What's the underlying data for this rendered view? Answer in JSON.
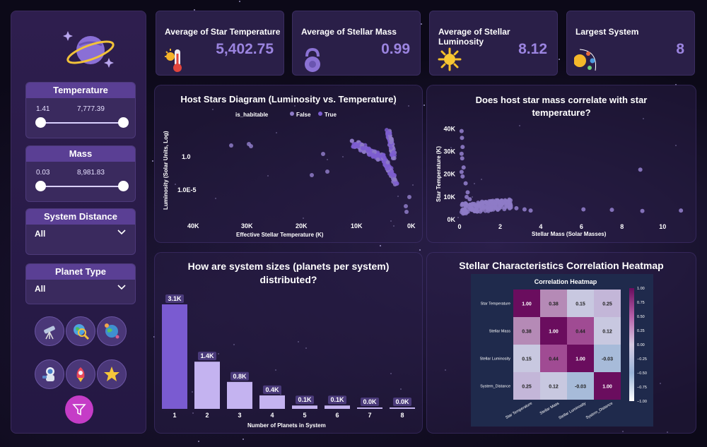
{
  "filters": {
    "temperature": {
      "label": "Temperature",
      "min": "1.41",
      "max": "7,777.39"
    },
    "mass": {
      "label": "Mass",
      "min": "0.03",
      "max": "8,981.83"
    },
    "system_distance": {
      "label": "System Distance",
      "value": "All"
    },
    "planet_type": {
      "label": "Planet Type",
      "value": "All"
    }
  },
  "nav_icons": [
    "telescope-icon",
    "earth-magnifier-icon",
    "planets-icon",
    "astronaut-icon",
    "rocket-icon",
    "star-icon",
    "filter-icon"
  ],
  "kpis": [
    {
      "title": "Average of Star Temperature",
      "value": "5,402.75",
      "icon": "thermometer-sun-icon"
    },
    {
      "title": "Average of Stellar Mass",
      "value": "0.99",
      "icon": "kettlebell-icon"
    },
    {
      "title": "Average of Stellar Luminosity",
      "value": "8.12",
      "icon": "sun-icon"
    },
    {
      "title": "Largest System",
      "value": "8",
      "icon": "solar-system-icon"
    }
  ],
  "colors": {
    "accent": "#9b84e0",
    "false_series": "#8e7bc7",
    "true_series": "#7c5dd0",
    "bar": "#c4b3f0"
  },
  "chart_data": [
    {
      "type": "scatter",
      "title": "Host Stars Diagram (Luminosity vs. Temperature)",
      "legend_title": "is_habitable",
      "series": [
        {
          "name": "False"
        },
        {
          "name": "True"
        }
      ],
      "xlabel": "Effective Stellar Temperature (K)",
      "ylabel": "Luminosity (Solar Units, Log)",
      "x_ticks": [
        "40K",
        "30K",
        "20K",
        "10K",
        "0K"
      ],
      "y_ticks": [
        "1.0",
        "1.0E-5"
      ],
      "x_reversed": true,
      "y_scale": "log",
      "xlim": [
        42000,
        0
      ]
    },
    {
      "type": "scatter",
      "title": "Does host star mass correlate with star temperature?",
      "xlabel": "Stellar Mass (Solar Masses)",
      "ylabel": "Star Temperature (K)",
      "x_ticks": [
        "0",
        "2",
        "4",
        "6",
        "8",
        "10"
      ],
      "y_ticks": [
        "0K",
        "10K",
        "20K",
        "30K",
        "40K"
      ],
      "xlim": [
        0,
        11
      ],
      "ylim": [
        0,
        42000
      ],
      "points": [
        [
          0.1,
          39000
        ],
        [
          0.12,
          36000
        ],
        [
          0.15,
          32000
        ],
        [
          0.1,
          29000
        ],
        [
          0.13,
          27000
        ],
        [
          0.2,
          23000
        ],
        [
          0.1,
          21000
        ],
        [
          0.3,
          16000
        ],
        [
          0.4,
          12000
        ],
        [
          0.35,
          10000
        ],
        [
          0.15,
          19000
        ],
        [
          0.5,
          9000
        ],
        [
          0.6,
          5000
        ],
        [
          1.0,
          6000
        ],
        [
          1.2,
          5500
        ],
        [
          2.8,
          5000
        ],
        [
          3.5,
          4000
        ],
        [
          3.2,
          4500
        ],
        [
          6.1,
          4500
        ],
        [
          7.5,
          4300
        ],
        [
          8.9,
          22000
        ],
        [
          9.0,
          3800
        ],
        [
          10.9,
          4000
        ]
      ]
    },
    {
      "type": "bar",
      "title": "How are system sizes (planets per system) distributed?",
      "xlabel": "Number of Planets in System",
      "categories": [
        "1",
        "2",
        "3",
        "4",
        "5",
        "6",
        "7",
        "8"
      ],
      "values": [
        3100,
        1400,
        800,
        400,
        100,
        100,
        0,
        0
      ],
      "labels": [
        "3.1K",
        "1.4K",
        "0.8K",
        "0.4K",
        "0.1K",
        "0.1K",
        "0.0K",
        "0.0K"
      ]
    },
    {
      "type": "heatmap",
      "title": "Stellar Characteristics Correlation Heatmap",
      "inner_title": "Correlation Heatmap",
      "rows": [
        "Star Temperature",
        "Stellar Mass",
        "Stellar Luminosity",
        "System_Distance"
      ],
      "cols": [
        "Star Temperature",
        "Stellar Mass",
        "Stellar Luminosity",
        "System_Distance"
      ],
      "values": [
        [
          1.0,
          0.38,
          0.15,
          0.25
        ],
        [
          0.38,
          1.0,
          0.44,
          0.12
        ],
        [
          0.15,
          0.44,
          1.0,
          -0.03
        ],
        [
          0.25,
          0.12,
          -0.03,
          1.0
        ]
      ],
      "colorbar_ticks": [
        "1.00",
        "0.75",
        "0.50",
        "0.25",
        "0.00",
        "−0.25",
        "−0.50",
        "−0.75",
        "−1.00"
      ]
    }
  ]
}
